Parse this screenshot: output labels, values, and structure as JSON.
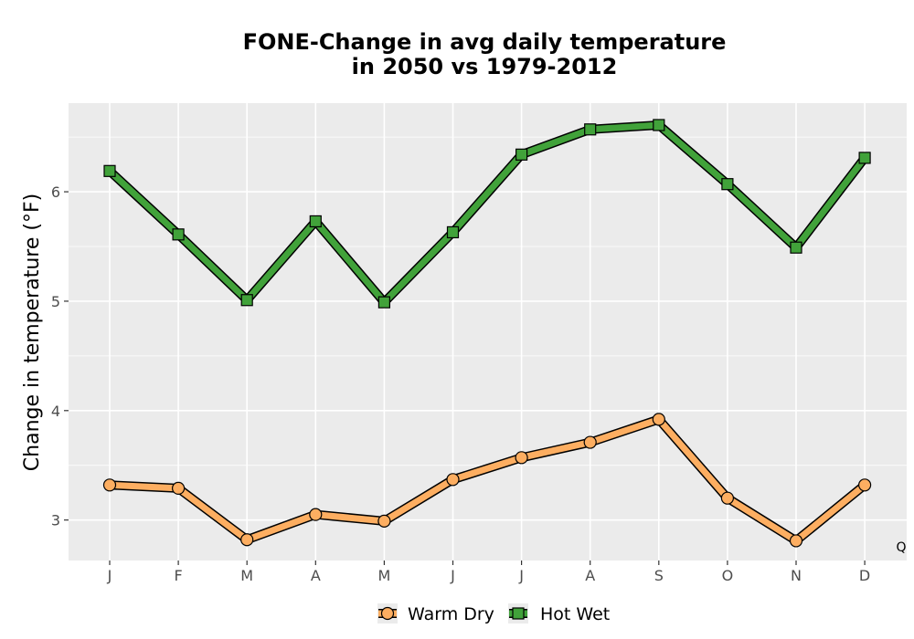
{
  "chart_data": {
    "type": "line",
    "title_line1": "FONE-Change in avg daily temperature",
    "title_line2": "in 2050 vs 1979-2012",
    "xlabel": "",
    "ylabel": "Change in temperature (°F)",
    "categories": [
      "J",
      "F",
      "M",
      "A",
      "M",
      "J",
      "J",
      "A",
      "S",
      "O",
      "N",
      "D"
    ],
    "ylim": [
      2.63,
      6.81
    ],
    "yticks": [
      3,
      4,
      5,
      6
    ],
    "grid": true,
    "legend_position": "bottom",
    "annotation": "Q",
    "series": [
      {
        "name": "Warm Dry",
        "marker": "circle",
        "color": "#fdae61",
        "values": [
          3.32,
          3.29,
          2.82,
          3.05,
          2.99,
          3.37,
          3.57,
          3.71,
          3.92,
          3.2,
          2.81,
          3.32
        ]
      },
      {
        "name": "Hot Wet",
        "marker": "square",
        "color": "#41a23a",
        "values": [
          6.19,
          5.61,
          5.01,
          5.73,
          4.99,
          5.63,
          6.34,
          6.57,
          6.61,
          6.07,
          5.49,
          6.31
        ]
      }
    ]
  }
}
